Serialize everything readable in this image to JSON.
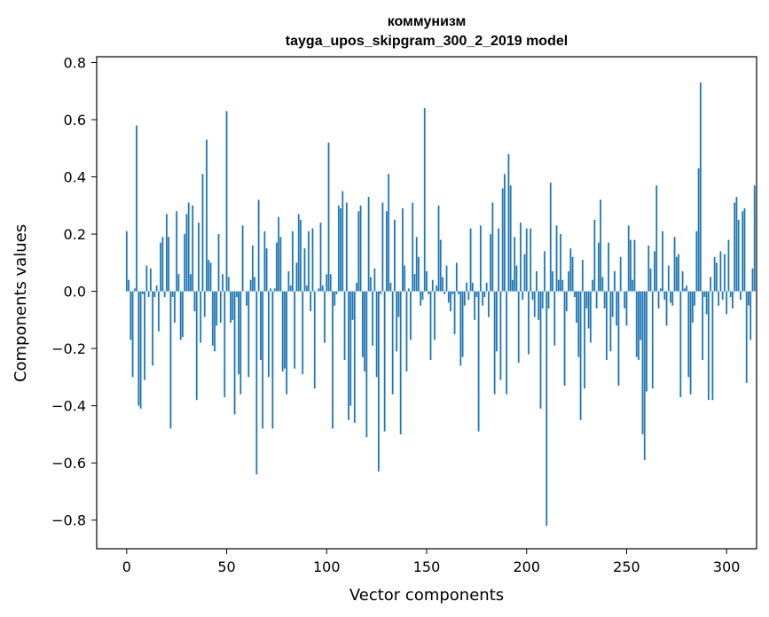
{
  "chart_data": {
    "type": "bar",
    "title": "коммунизм",
    "subtitle": "tayga_upos_skipgram_300_2_2019 model",
    "xlabel": "Vector components",
    "ylabel": "Components values",
    "xlim": [
      -15,
      315
    ],
    "ylim": [
      -0.9,
      0.82
    ],
    "x_ticks": [
      0,
      50,
      100,
      150,
      200,
      250,
      300
    ],
    "x_tick_labels": [
      "0",
      "50",
      "100",
      "150",
      "200",
      "250",
      "300"
    ],
    "y_ticks": [
      -0.8,
      -0.6,
      -0.4,
      -0.2,
      0.0,
      0.2,
      0.4,
      0.6,
      0.8
    ],
    "y_tick_labels": [
      "−0.8",
      "−0.6",
      "−0.4",
      "−0.2",
      "0.0",
      "0.2",
      "0.4",
      "0.6",
      "0.8"
    ],
    "grid": false,
    "bar_color": "#1f77b4",
    "values": [
      0.21,
      0.04,
      -0.17,
      -0.3,
      0.01,
      0.58,
      -0.4,
      -0.41,
      -0.01,
      -0.31,
      0.09,
      -0.02,
      0.08,
      -0.26,
      -0.02,
      0.02,
      -0.14,
      0.17,
      0.19,
      -0.02,
      0.27,
      0.19,
      -0.48,
      -0.02,
      -0.11,
      0.28,
      0.06,
      -0.17,
      -0.16,
      0.2,
      0.27,
      0.31,
      0.06,
      0.3,
      -0.07,
      -0.38,
      0.24,
      -0.18,
      0.41,
      -0.09,
      0.53,
      0.11,
      0.1,
      -0.19,
      -0.21,
      -0.12,
      0.2,
      -0.11,
      0.06,
      -0.37,
      0.63,
      0.05,
      -0.11,
      -0.1,
      -0.43,
      -0.02,
      -0.29,
      -0.36,
      0.23,
      0.0,
      -0.05,
      -0.3,
      0.04,
      0.16,
      0.05,
      -0.64,
      0.32,
      -0.24,
      -0.48,
      0.21,
      0.15,
      -0.3,
      0.01,
      -0.48,
      0.01,
      0.17,
      0.26,
      0.19,
      -0.28,
      -0.27,
      -0.36,
      0.07,
      0.02,
      0.21,
      -0.27,
      0.1,
      0.27,
      0.25,
      -0.29,
      0.15,
      0.02,
      0.21,
      -0.07,
      0.22,
      -0.34,
      0.0,
      0.01,
      0.24,
      0.02,
      -0.18,
      0.06,
      0.52,
      0.06,
      -0.48,
      -0.05,
      -0.01,
      0.3,
      0.29,
      0.35,
      -0.24,
      0.31,
      -0.45,
      -0.4,
      -0.1,
      -0.46,
      0.03,
      0.28,
      0.3,
      -0.23,
      -0.28,
      -0.51,
      0.33,
      0.05,
      -0.19,
      0.08,
      -0.3,
      -0.63,
      -0.01,
      0.31,
      -0.49,
      0.28,
      0.41,
      0.03,
      -0.36,
      0.25,
      -0.21,
      -0.09,
      -0.5,
      0.29,
      0.09,
      -0.28,
      0.01,
      -0.17,
      0.31,
      0.06,
      0.19,
      0.12,
      -0.05,
      -0.03,
      0.64,
      0.07,
      -0.01,
      -0.24,
      0.04,
      -0.17,
      0.02,
      0.3,
      0.18,
      0.05,
      -0.01,
      0.09,
      -0.04,
      -0.07,
      -0.01,
      -0.15,
      0.1,
      -0.01,
      -0.26,
      -0.23,
      -0.05,
      0.03,
      -0.03,
      0.22,
      0.03,
      -0.1,
      -0.02,
      -0.49,
      0.23,
      -0.05,
      -0.02,
      0.03,
      -0.09,
      0.2,
      0.31,
      -0.36,
      -0.21,
      0.22,
      -0.31,
      0.36,
      0.41,
      -0.36,
      0.48,
      0.37,
      0.04,
      0.19,
      0.09,
      -0.25,
      0.24,
      -0.03,
      0.13,
      0.22,
      -0.22,
      0.22,
      -0.03,
      -0.09,
      0.07,
      -0.1,
      -0.41,
      -0.06,
      0.14,
      -0.82,
      -0.06,
      0.38,
      0.07,
      -0.19,
      0.23,
      0.04,
      0.2,
      0.04,
      -0.33,
      -0.07,
      0.07,
      0.15,
      0.12,
      -0.02,
      -0.11,
      -0.23,
      -0.45,
      0.11,
      -0.34,
      -0.06,
      -0.13,
      -0.18,
      0.04,
      0.25,
      -0.06,
      0.17,
      0.32,
      0.05,
      -0.06,
      -0.24,
      0.17,
      -0.21,
      -0.09,
      0.07,
      -0.12,
      -0.33,
      0.12,
      0.0,
      -0.06,
      -0.12,
      0.23,
      0.18,
      0.04,
      0.18,
      -0.23,
      -0.24,
      -0.17,
      -0.5,
      -0.59,
      -0.35,
      0.16,
      0.08,
      -0.34,
      0.14,
      0.37,
      -0.06,
      0.01,
      0.21,
      -0.03,
      -0.12,
      0.09,
      -0.04,
      -0.05,
      0.19,
      0.12,
      0.13,
      -0.37,
      0.07,
      0.01,
      0.02,
      -0.3,
      -0.36,
      -0.11,
      -0.05,
      0.21,
      0.43,
      0.73,
      -0.24,
      -0.02,
      -0.08,
      -0.38,
      0.05,
      -0.38,
      0.12,
      0.1,
      -0.05,
      0.14,
      -0.03,
      0.13,
      -0.08,
      0.18,
      -0.02,
      -0.06,
      0.31,
      0.33,
      0.25,
      -0.03,
      0.28,
      0.29,
      -0.32,
      -0.05,
      -0.17,
      0.08,
      0.37
    ]
  }
}
